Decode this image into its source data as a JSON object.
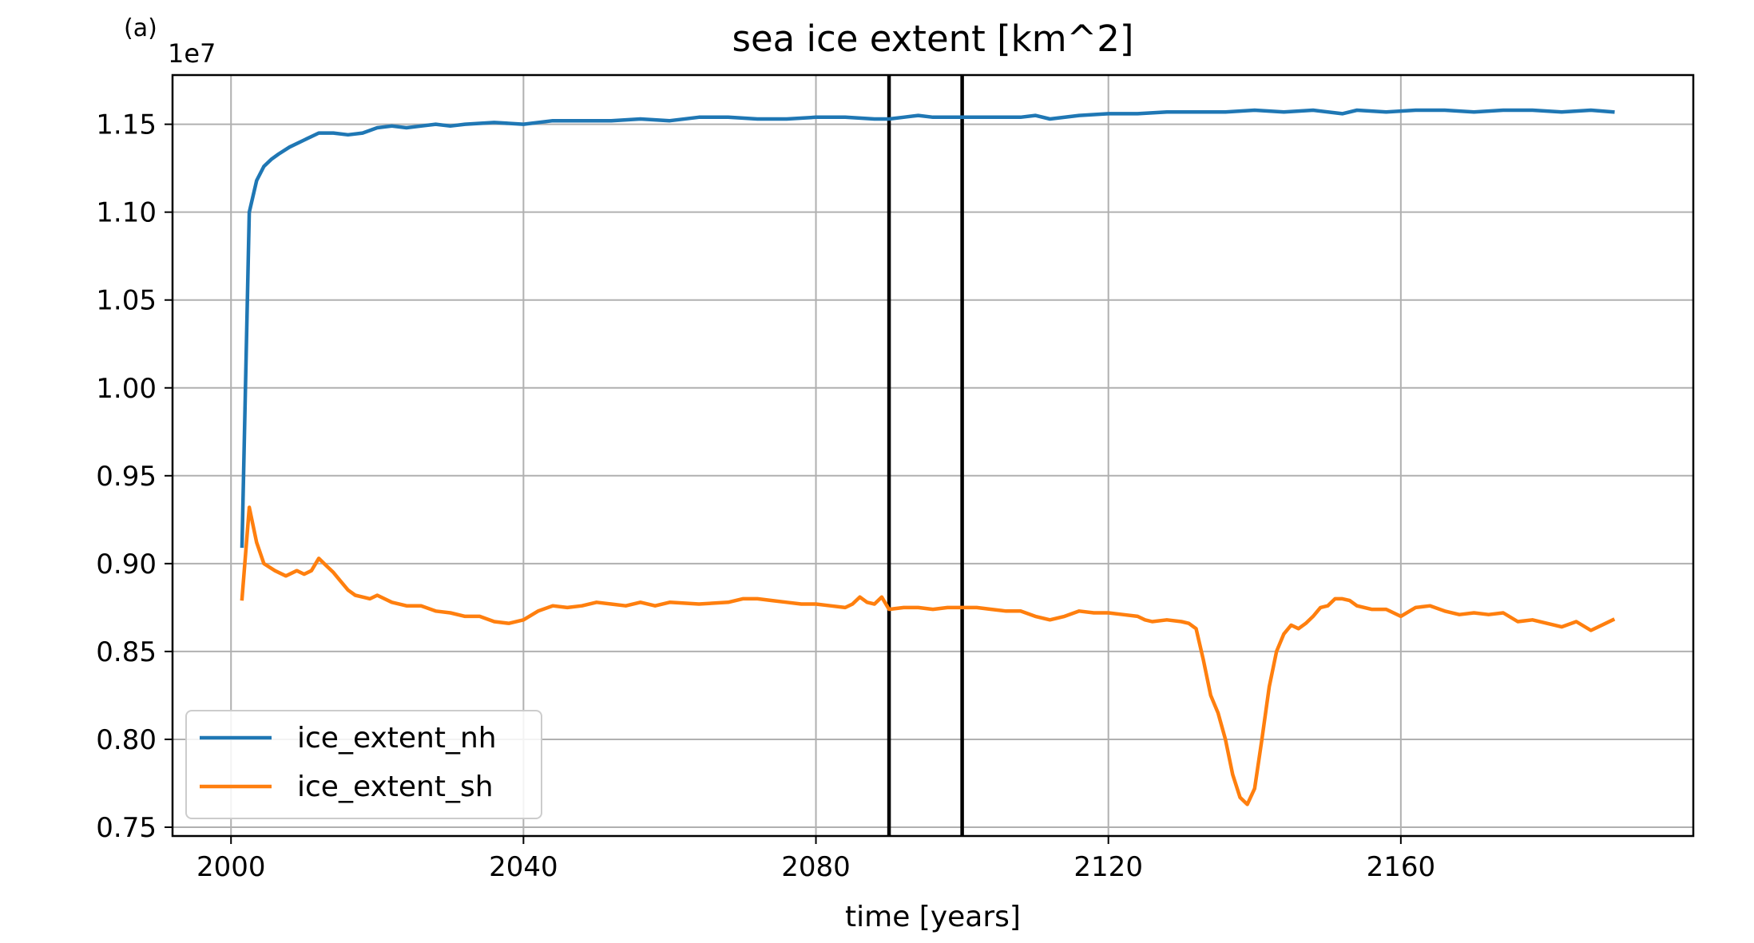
{
  "panel_label": "(a)",
  "chart_data": {
    "type": "line",
    "title": "sea ice extent [km^2]",
    "xlabel": "time [years]",
    "ylabel": "",
    "y_offset_label": "1e7",
    "xlim": [
      1992,
      2200
    ],
    "ylim": [
      0.745,
      1.178
    ],
    "xticks": [
      2000,
      2040,
      2080,
      2120,
      2160
    ],
    "yticks": [
      0.75,
      0.8,
      0.85,
      0.9,
      0.95,
      1.0,
      1.05,
      1.1,
      1.15
    ],
    "ytick_labels": [
      "0.75",
      "0.80",
      "0.85",
      "0.90",
      "0.95",
      "1.00",
      "1.05",
      "1.10",
      "1.15"
    ],
    "grid": true,
    "legend_position": "lower-left",
    "vlines": [
      2090,
      2100
    ],
    "vline_color": "#000000",
    "series": [
      {
        "name": "ice_extent_nh",
        "color": "#1f77b4",
        "points": [
          [
            2001.5,
            0.91
          ],
          [
            2002.5,
            1.1
          ],
          [
            2003.5,
            1.118
          ],
          [
            2004.5,
            1.126
          ],
          [
            2005.5,
            1.13
          ],
          [
            2006.5,
            1.133
          ],
          [
            2008,
            1.137
          ],
          [
            2010,
            1.141
          ],
          [
            2012,
            1.145
          ],
          [
            2014,
            1.145
          ],
          [
            2016,
            1.144
          ],
          [
            2018,
            1.145
          ],
          [
            2020,
            1.148
          ],
          [
            2022,
            1.149
          ],
          [
            2024,
            1.148
          ],
          [
            2026,
            1.149
          ],
          [
            2028,
            1.15
          ],
          [
            2030,
            1.149
          ],
          [
            2032,
            1.15
          ],
          [
            2036,
            1.151
          ],
          [
            2040,
            1.15
          ],
          [
            2044,
            1.152
          ],
          [
            2048,
            1.152
          ],
          [
            2052,
            1.152
          ],
          [
            2056,
            1.153
          ],
          [
            2060,
            1.152
          ],
          [
            2064,
            1.154
          ],
          [
            2068,
            1.154
          ],
          [
            2072,
            1.153
          ],
          [
            2076,
            1.153
          ],
          [
            2080,
            1.154
          ],
          [
            2084,
            1.154
          ],
          [
            2088,
            1.153
          ],
          [
            2090,
            1.153
          ],
          [
            2092,
            1.154
          ],
          [
            2094,
            1.155
          ],
          [
            2096,
            1.154
          ],
          [
            2098,
            1.154
          ],
          [
            2100,
            1.154
          ],
          [
            2104,
            1.154
          ],
          [
            2108,
            1.154
          ],
          [
            2110,
            1.155
          ],
          [
            2112,
            1.153
          ],
          [
            2116,
            1.155
          ],
          [
            2120,
            1.156
          ],
          [
            2124,
            1.156
          ],
          [
            2128,
            1.157
          ],
          [
            2132,
            1.157
          ],
          [
            2136,
            1.157
          ],
          [
            2140,
            1.158
          ],
          [
            2144,
            1.157
          ],
          [
            2148,
            1.158
          ],
          [
            2152,
            1.156
          ],
          [
            2154,
            1.158
          ],
          [
            2158,
            1.157
          ],
          [
            2162,
            1.158
          ],
          [
            2166,
            1.158
          ],
          [
            2170,
            1.157
          ],
          [
            2174,
            1.158
          ],
          [
            2178,
            1.158
          ],
          [
            2182,
            1.157
          ],
          [
            2186,
            1.158
          ],
          [
            2189,
            1.157
          ]
        ]
      },
      {
        "name": "ice_extent_sh",
        "color": "#ff7f0e",
        "points": [
          [
            2001.5,
            0.88
          ],
          [
            2002.5,
            0.932
          ],
          [
            2003.5,
            0.912
          ],
          [
            2004.5,
            0.9
          ],
          [
            2006,
            0.896
          ],
          [
            2007.5,
            0.893
          ],
          [
            2009,
            0.896
          ],
          [
            2010,
            0.894
          ],
          [
            2011,
            0.896
          ],
          [
            2012,
            0.903
          ],
          [
            2013,
            0.899
          ],
          [
            2014,
            0.895
          ],
          [
            2015,
            0.89
          ],
          [
            2016,
            0.885
          ],
          [
            2017,
            0.882
          ],
          [
            2018,
            0.881
          ],
          [
            2019,
            0.88
          ],
          [
            2020,
            0.882
          ],
          [
            2022,
            0.878
          ],
          [
            2024,
            0.876
          ],
          [
            2026,
            0.876
          ],
          [
            2028,
            0.873
          ],
          [
            2030,
            0.872
          ],
          [
            2032,
            0.87
          ],
          [
            2034,
            0.87
          ],
          [
            2036,
            0.867
          ],
          [
            2038,
            0.866
          ],
          [
            2040,
            0.868
          ],
          [
            2042,
            0.873
          ],
          [
            2044,
            0.876
          ],
          [
            2046,
            0.875
          ],
          [
            2048,
            0.876
          ],
          [
            2050,
            0.878
          ],
          [
            2052,
            0.877
          ],
          [
            2054,
            0.876
          ],
          [
            2056,
            0.878
          ],
          [
            2058,
            0.876
          ],
          [
            2060,
            0.878
          ],
          [
            2064,
            0.877
          ],
          [
            2068,
            0.878
          ],
          [
            2070,
            0.88
          ],
          [
            2072,
            0.88
          ],
          [
            2074,
            0.879
          ],
          [
            2076,
            0.878
          ],
          [
            2078,
            0.877
          ],
          [
            2080,
            0.877
          ],
          [
            2082,
            0.876
          ],
          [
            2084,
            0.875
          ],
          [
            2085,
            0.877
          ],
          [
            2086,
            0.881
          ],
          [
            2087,
            0.878
          ],
          [
            2088,
            0.877
          ],
          [
            2089,
            0.881
          ],
          [
            2090,
            0.874
          ],
          [
            2092,
            0.875
          ],
          [
            2094,
            0.875
          ],
          [
            2096,
            0.874
          ],
          [
            2098,
            0.875
          ],
          [
            2100,
            0.875
          ],
          [
            2102,
            0.875
          ],
          [
            2104,
            0.874
          ],
          [
            2106,
            0.873
          ],
          [
            2108,
            0.873
          ],
          [
            2110,
            0.87
          ],
          [
            2112,
            0.868
          ],
          [
            2114,
            0.87
          ],
          [
            2116,
            0.873
          ],
          [
            2118,
            0.872
          ],
          [
            2120,
            0.872
          ],
          [
            2122,
            0.871
          ],
          [
            2124,
            0.87
          ],
          [
            2125,
            0.868
          ],
          [
            2126,
            0.867
          ],
          [
            2128,
            0.868
          ],
          [
            2130,
            0.867
          ],
          [
            2131,
            0.866
          ],
          [
            2132,
            0.863
          ],
          [
            2133,
            0.845
          ],
          [
            2134,
            0.825
          ],
          [
            2135,
            0.815
          ],
          [
            2136,
            0.8
          ],
          [
            2137,
            0.78
          ],
          [
            2138,
            0.767
          ],
          [
            2139,
            0.763
          ],
          [
            2140,
            0.772
          ],
          [
            2141,
            0.8
          ],
          [
            2142,
            0.83
          ],
          [
            2143,
            0.85
          ],
          [
            2144,
            0.86
          ],
          [
            2145,
            0.865
          ],
          [
            2146,
            0.863
          ],
          [
            2147,
            0.866
          ],
          [
            2148,
            0.87
          ],
          [
            2149,
            0.875
          ],
          [
            2150,
            0.876
          ],
          [
            2151,
            0.88
          ],
          [
            2152,
            0.88
          ],
          [
            2153,
            0.879
          ],
          [
            2154,
            0.876
          ],
          [
            2156,
            0.874
          ],
          [
            2158,
            0.874
          ],
          [
            2160,
            0.87
          ],
          [
            2162,
            0.875
          ],
          [
            2164,
            0.876
          ],
          [
            2166,
            0.873
          ],
          [
            2168,
            0.871
          ],
          [
            2170,
            0.872
          ],
          [
            2172,
            0.871
          ],
          [
            2174,
            0.872
          ],
          [
            2176,
            0.867
          ],
          [
            2178,
            0.868
          ],
          [
            2180,
            0.866
          ],
          [
            2182,
            0.864
          ],
          [
            2184,
            0.867
          ],
          [
            2186,
            0.862
          ],
          [
            2188,
            0.866
          ],
          [
            2189,
            0.868
          ]
        ]
      }
    ]
  }
}
